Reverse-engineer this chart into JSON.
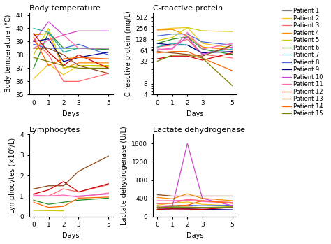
{
  "patients": [
    "Patient 1",
    "Patient 2",
    "Patient 3",
    "Patient 4",
    "Patient 5",
    "Patient 6",
    "Patient 7",
    "Patient 8",
    "Patient 9",
    "Patient 10",
    "Patient 11",
    "Patient 12",
    "Patient 13",
    "Patient 14",
    "Patient 15"
  ],
  "colors": [
    "#808080",
    "#f5c518",
    "#ff6666",
    "#ff8c00",
    "#cccc00",
    "#228B22",
    "#20B2AA",
    "#4169E1",
    "#00008B",
    "#cc44cc",
    "#ff69b4",
    "#cc0000",
    "#8B4513",
    "#ff6600",
    "#808000"
  ],
  "days_temp": [
    0,
    1,
    2,
    3,
    5
  ],
  "body_temp": [
    [
      null,
      null,
      null,
      null,
      null
    ],
    [
      36.2,
      37.3,
      36.5,
      37.2,
      37.1
    ],
    [
      39.1,
      38.0,
      36.0,
      36.0,
      36.6
    ],
    [
      39.5,
      39.6,
      37.0,
      37.4,
      37.4
    ],
    [
      38.0,
      40.0,
      37.0,
      37.2,
      37.2
    ],
    [
      37.0,
      39.7,
      38.5,
      38.5,
      38.4
    ],
    [
      40.0,
      39.7,
      38.2,
      38.5,
      38.5
    ],
    [
      38.8,
      38.5,
      38.5,
      38.8,
      38.0
    ],
    [
      39.0,
      39.2,
      37.5,
      37.8,
      38.2
    ],
    [
      39.0,
      40.5,
      39.5,
      39.8,
      39.8
    ],
    [
      38.5,
      39.1,
      39.5,
      38.5,
      38.5
    ],
    [
      39.6,
      38.2,
      37.2,
      38.0,
      37.0
    ],
    [
      38.5,
      38.5,
      38.0,
      37.2,
      36.6
    ],
    [
      39.3,
      37.2,
      37.7,
      37.8,
      37.7
    ],
    [
      37.8,
      37.5,
      37.2,
      37.0,
      37.0
    ]
  ],
  "days_crp": [
    0,
    1,
    2,
    3,
    5
  ],
  "crp": [
    [
      null,
      null,
      null,
      null,
      null
    ],
    [
      240,
      260,
      270,
      100,
      75
    ],
    [
      80,
      90,
      130,
      50,
      40
    ],
    [
      230,
      240,
      160,
      80,
      65
    ],
    [
      120,
      145,
      270,
      220,
      210
    ],
    [
      100,
      130,
      150,
      70,
      50
    ],
    [
      80,
      100,
      90,
      55,
      70
    ],
    [
      160,
      180,
      180,
      110,
      90
    ],
    [
      100,
      90,
      90,
      55,
      60
    ],
    [
      65,
      75,
      150,
      50,
      80
    ],
    [
      70,
      70,
      200,
      70,
      100
    ],
    [
      38,
      45,
      45,
      35,
      55
    ],
    [
      60,
      55,
      50,
      45,
      90
    ],
    [
      55,
      60,
      60,
      40,
      18
    ],
    [
      33,
      48,
      48,
      40,
      7
    ]
  ],
  "days_lymph": [
    0,
    1,
    2,
    3,
    5
  ],
  "lymphocytes": [
    [
      null,
      null,
      null,
      null,
      null
    ],
    [
      null,
      null,
      null,
      null,
      null
    ],
    [
      null,
      null,
      null,
      null,
      null
    ],
    [
      null,
      null,
      null,
      null,
      null
    ],
    [
      0.3,
      null,
      null,
      null,
      null
    ],
    [
      0.8,
      0.6,
      0.7,
      0.8,
      0.9
    ],
    [
      null,
      null,
      null,
      null,
      null
    ],
    [
      null,
      null,
      null,
      null,
      null
    ],
    [
      null,
      null,
      null,
      null,
      null
    ],
    [
      1.0,
      1.0,
      1.0,
      1.0,
      1.1
    ],
    [
      1.0,
      1.0,
      1.0,
      0.95,
      1.15
    ],
    [
      1.1,
      1.3,
      1.7,
      1.2,
      1.6
    ],
    [
      1.35,
      1.5,
      1.5,
      2.2,
      2.95
    ],
    [
      0.7,
      0.45,
      0.5,
      0.9,
      0.95
    ],
    [
      0.3,
      null,
      0.3,
      null,
      null
    ]
  ],
  "lymphocytes2": {
    "p2": [
      1.35,
      null,
      null,
      null,
      null
    ],
    "p3": [
      1.0,
      1.0,
      1.35,
      1.2,
      1.55
    ],
    "p5": [
      0.3,
      null,
      0.28,
      null,
      null
    ],
    "p6": [
      0.8,
      0.6,
      0.7,
      0.8,
      0.9
    ],
    "p10": [
      1.0,
      1.0,
      1.0,
      1.0,
      1.1
    ],
    "p11": [
      1.0,
      1.0,
      1.0,
      0.95,
      1.15
    ],
    "p12": [
      1.1,
      1.3,
      1.7,
      1.2,
      1.6
    ],
    "p13": [
      1.35,
      1.5,
      1.5,
      2.2,
      2.95
    ],
    "p14": [
      0.7,
      0.45,
      0.5,
      0.9,
      0.95
    ]
  },
  "days_ldh": [
    0,
    1,
    2,
    3,
    5
  ],
  "ldh": [
    [
      null,
      null,
      null,
      null,
      null
    ],
    [
      250,
      300,
      320,
      270,
      240
    ],
    [
      280,
      290,
      380,
      350,
      310
    ],
    [
      420,
      390,
      500,
      400,
      350
    ],
    [
      180,
      200,
      200,
      200,
      220
    ],
    [
      200,
      210,
      200,
      190,
      210
    ],
    [
      200,
      210,
      200,
      200,
      195
    ],
    [
      230,
      240,
      250,
      240,
      250
    ],
    [
      160,
      170,
      170,
      160,
      150
    ],
    [
      200,
      230,
      1600,
      400,
      240
    ],
    [
      350,
      350,
      360,
      330,
      300
    ],
    [
      160,
      170,
      165,
      160,
      200
    ],
    [
      480,
      450,
      450,
      450,
      450
    ],
    [
      230,
      240,
      250,
      350,
      290
    ],
    [
      200,
      210,
      210,
      200,
      195
    ]
  ],
  "title_fontsize": 8,
  "label_fontsize": 7,
  "tick_fontsize": 6.5,
  "legend_fontsize": 6
}
